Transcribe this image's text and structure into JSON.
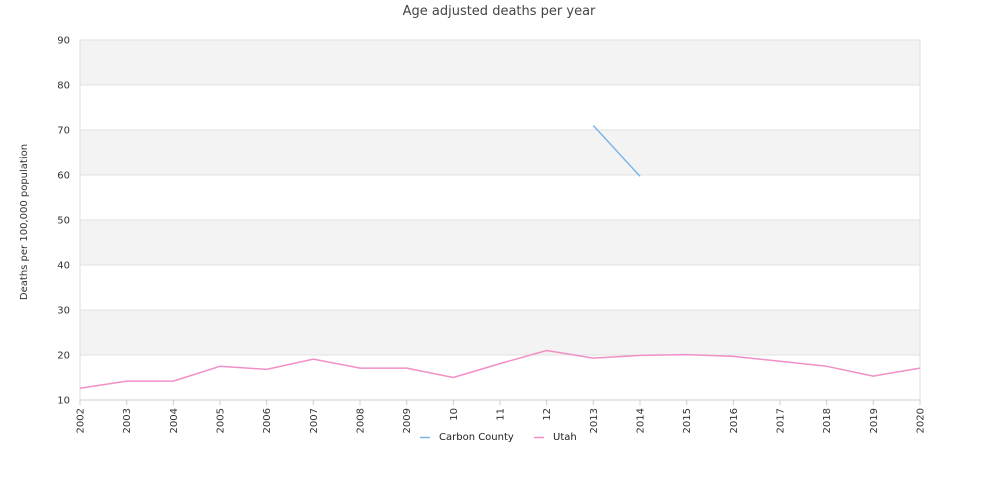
{
  "chart_data": {
    "type": "line",
    "title": "Age adjusted deaths per year",
    "xlabel": "",
    "ylabel": "Deaths per 100,000 population",
    "x": [
      "2002",
      "2003",
      "2004",
      "2005",
      "2006",
      "2007",
      "2008",
      "2009",
      "10",
      "11",
      "12",
      "2013",
      "2014",
      "2015",
      "2016",
      "2017",
      "2018",
      "2019",
      "2020"
    ],
    "ylim": [
      10,
      90
    ],
    "yticks": [
      10,
      20,
      30,
      40,
      50,
      60,
      70,
      80,
      90
    ],
    "grid": true,
    "legend": "bottom",
    "series": [
      {
        "name": "Carbon County",
        "color": "#7cb5ec",
        "values": [
          null,
          null,
          null,
          null,
          null,
          null,
          null,
          null,
          null,
          null,
          null,
          71.0,
          59.7,
          null,
          null,
          null,
          null,
          null,
          null
        ]
      },
      {
        "name": "Utah",
        "color": "#f28fc6",
        "values": [
          12.6,
          14.2,
          14.2,
          17.5,
          16.8,
          19.1,
          17.1,
          17.1,
          15.0,
          18.1,
          21.0,
          19.3,
          19.9,
          20.1,
          19.7,
          18.6,
          17.5,
          15.3,
          17.1
        ]
      }
    ]
  }
}
